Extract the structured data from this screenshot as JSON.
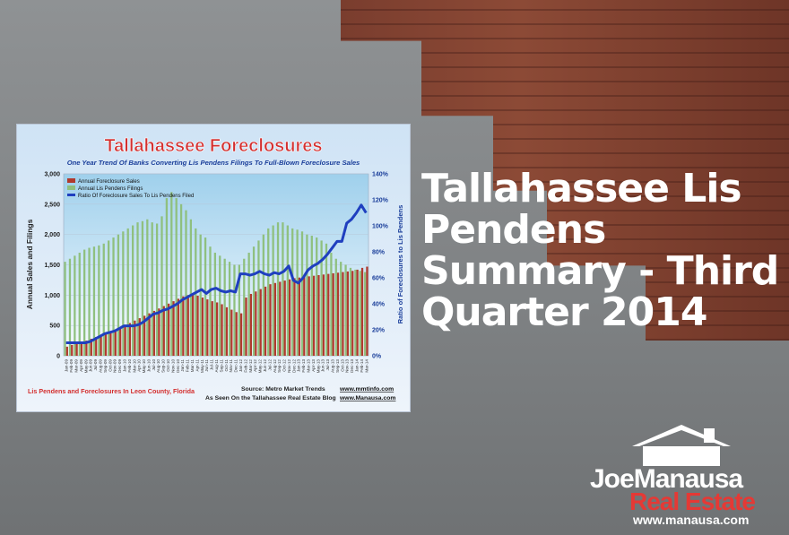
{
  "headline": "Tallahassee Lis Pendens Summary - Third Quarter 2014",
  "logo": {
    "brand_part1": "Joe",
    "brand_part2": "Manausa",
    "brand_line2": "Real Estate",
    "url": "www.manausa.com"
  },
  "colors": {
    "sales_bar": "#b03a2e",
    "filings_bar": "#8fc07f",
    "ratio_line": "#1f3fbf",
    "title_red": "#d32f2f",
    "subtitle_blue": "#1a3e9a"
  },
  "chart_data": {
    "type": "bar",
    "title": "Tallahassee Foreclosures",
    "subtitle": "One Year Trend Of Banks Converting Lis Pendens Filings To Full-Blown Foreclosure Sales",
    "ylabel": "Annual Sales and Filings",
    "y2label": "Ratio of Foreclosures to Lis Pendens",
    "ylim": [
      0,
      3000
    ],
    "y2lim": [
      0,
      1.4
    ],
    "yticks": [
      "0",
      "500",
      "1,000",
      "1,500",
      "2,000",
      "2,500",
      "3,000"
    ],
    "y2ticks": [
      "0%",
      "20%",
      "40%",
      "60%",
      "80%",
      "100%",
      "120%",
      "140%"
    ],
    "footer_left": "Lis Pendens and Foreclosures In Leon County, Florida",
    "source": "Source: Metro Market Trends",
    "source_url": "www.mmtinfo.com",
    "seen_on": "As Seen On the Tallahassee Real Estate Blog",
    "seen_url": "www.Manausa.com",
    "categories": [
      "Jan-09",
      "Feb-09",
      "Mar-09",
      "Apr-09",
      "May-09",
      "Jun-09",
      "Jul-09",
      "Aug-09",
      "Sep-09",
      "Oct-09",
      "Nov-09",
      "Dec-09",
      "Jan-10",
      "Feb-10",
      "Mar-10",
      "Apr-10",
      "May-10",
      "Jun-10",
      "Jul-10",
      "Aug-10",
      "Sep-10",
      "Oct-10",
      "Nov-10",
      "Dec-10",
      "Jan-11",
      "Feb-11",
      "Mar-11",
      "Apr-11",
      "May-11",
      "Jun-11",
      "Jul-11",
      "Aug-11",
      "Sep-11",
      "Oct-11",
      "Nov-11",
      "Dec-11",
      "Jan-12",
      "Feb-12",
      "Mar-12",
      "Apr-12",
      "May-12",
      "Jun-12",
      "Jul-12",
      "Aug-12",
      "Sep-12",
      "Oct-12",
      "Nov-12",
      "Dec-12",
      "Jan-13",
      "Feb-13",
      "Mar-13",
      "Apr-13",
      "May-13",
      "Jun-13",
      "Jul-13",
      "Aug-13",
      "Sep-13",
      "Oct-13",
      "Nov-13",
      "Dec-13",
      "Jan-14",
      "Feb-14",
      "Mar-14"
    ],
    "series": [
      {
        "name": "Annual Foreclosure Sales",
        "kind": "bar",
        "values": [
          150,
          180,
          200,
          220,
          250,
          280,
          310,
          340,
          370,
          400,
          430,
          460,
          500,
          540,
          580,
          620,
          660,
          700,
          740,
          780,
          820,
          860,
          900,
          940,
          980,
          1000,
          1000,
          990,
          960,
          930,
          900,
          880,
          850,
          800,
          760,
          720,
          700,
          960,
          1020,
          1060,
          1100,
          1140,
          1180,
          1200,
          1220,
          1240,
          1260,
          1280,
          1290,
          1300,
          1310,
          1320,
          1330,
          1340,
          1350,
          1360,
          1370,
          1380,
          1390,
          1400,
          1420,
          1450,
          1470
        ]
      },
      {
        "name": "Annual Lis Pendens Filings",
        "kind": "bar",
        "values": [
          1550,
          1600,
          1650,
          1700,
          1750,
          1780,
          1800,
          1820,
          1850,
          1900,
          1950,
          2000,
          2050,
          2100,
          2150,
          2200,
          2220,
          2250,
          2200,
          2180,
          2300,
          2600,
          2700,
          2600,
          2500,
          2400,
          2250,
          2100,
          2000,
          1950,
          1800,
          1700,
          1650,
          1600,
          1550,
          1500,
          1500,
          1600,
          1700,
          1800,
          1900,
          2000,
          2100,
          2150,
          2200,
          2200,
          2150,
          2100,
          2080,
          2050,
          2000,
          1980,
          1950,
          1900,
          1850,
          1700,
          1600,
          1550,
          1500,
          1450,
          1420,
          1400,
          1380
        ]
      },
      {
        "name": "Ratio Of Foreclosure Sales To Lis Pendens Filed",
        "kind": "line",
        "axis": "right",
        "values": [
          0.1,
          0.1,
          0.1,
          0.1,
          0.1,
          0.11,
          0.13,
          0.15,
          0.17,
          0.18,
          0.19,
          0.21,
          0.23,
          0.23,
          0.23,
          0.24,
          0.26,
          0.29,
          0.32,
          0.33,
          0.35,
          0.36,
          0.38,
          0.4,
          0.43,
          0.45,
          0.47,
          0.49,
          0.51,
          0.48,
          0.51,
          0.52,
          0.5,
          0.49,
          0.5,
          0.49,
          0.63,
          0.63,
          0.62,
          0.63,
          0.65,
          0.63,
          0.62,
          0.64,
          0.63,
          0.65,
          0.69,
          0.58,
          0.56,
          0.6,
          0.66,
          0.69,
          0.71,
          0.74,
          0.78,
          0.83,
          0.88,
          0.88,
          1.02,
          1.05,
          1.1,
          1.16,
          1.1
        ]
      }
    ]
  }
}
